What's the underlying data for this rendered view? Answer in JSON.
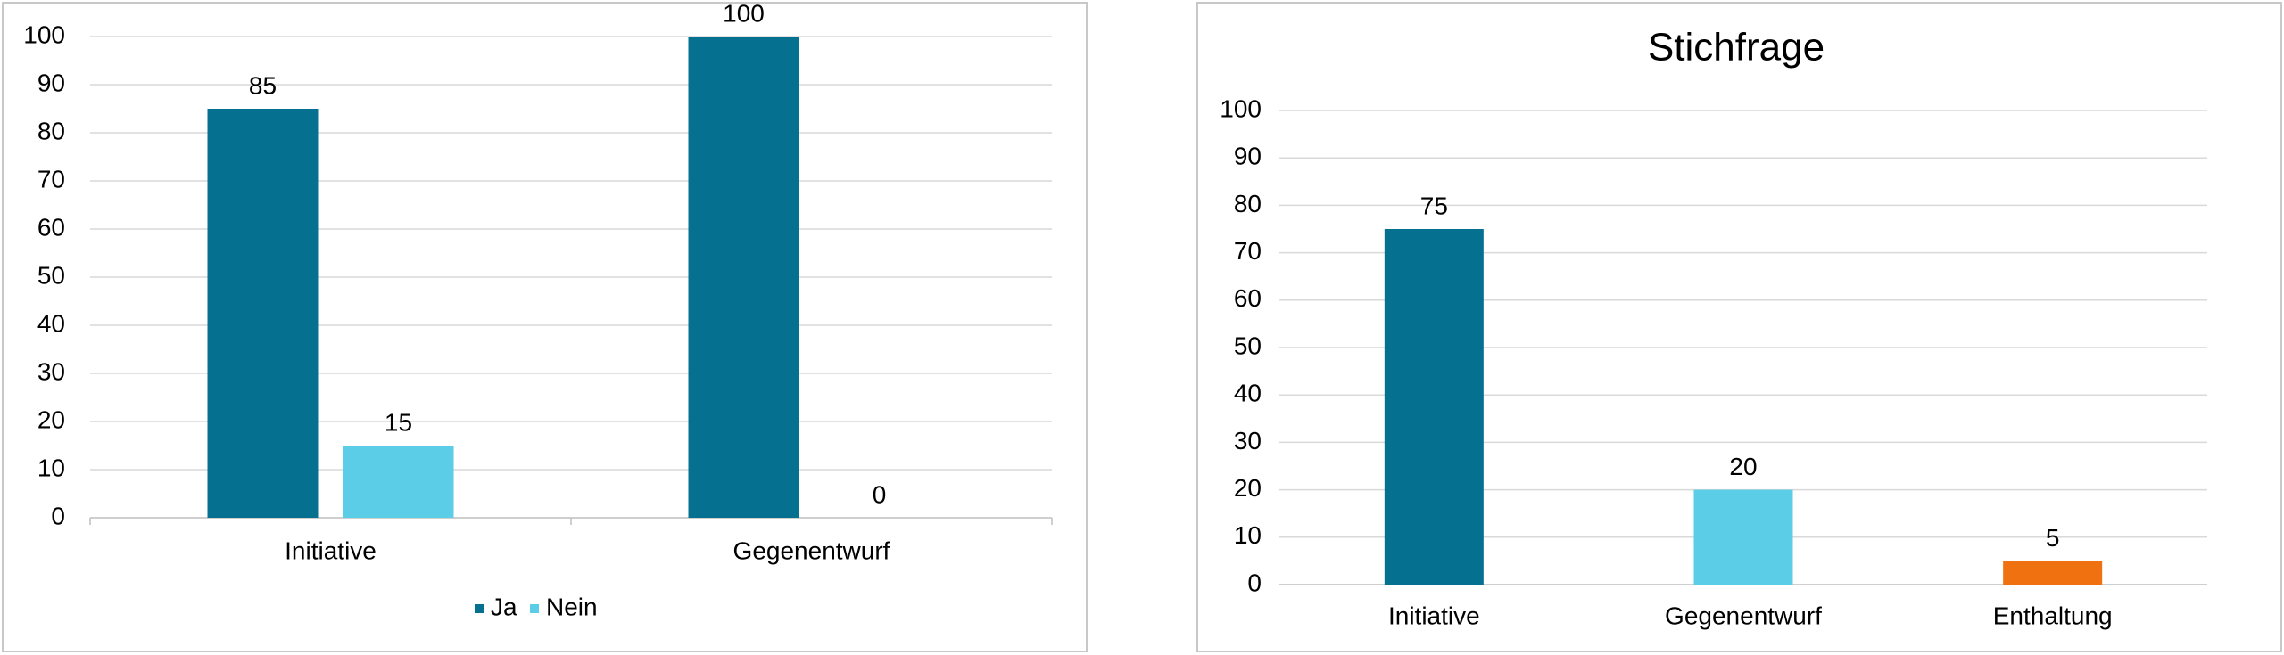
{
  "chart_data": [
    {
      "type": "bar",
      "categories": [
        "Initiative",
        "Gegenentwurf"
      ],
      "series": [
        {
          "name": "Ja",
          "color": "#05708f",
          "values": [
            85,
            100
          ]
        },
        {
          "name": "Nein",
          "color": "#5bcde6",
          "values": [
            15,
            0
          ]
        }
      ],
      "ylim": [
        0,
        100
      ],
      "yticks": [
        0,
        10,
        20,
        30,
        40,
        50,
        60,
        70,
        80,
        90,
        100
      ],
      "grid": true,
      "legend": "bottom"
    },
    {
      "type": "bar",
      "title": "Stichfrage",
      "categories": [
        "Initiative",
        "Gegenentwurf",
        "Enthaltung"
      ],
      "values": [
        75,
        20,
        5
      ],
      "colors": [
        "#05708f",
        "#5bcde6",
        "#f07110"
      ],
      "ylim": [
        0,
        100
      ],
      "yticks": [
        0,
        10,
        20,
        30,
        40,
        50,
        60,
        70,
        80,
        90,
        100
      ],
      "grid": true
    }
  ]
}
